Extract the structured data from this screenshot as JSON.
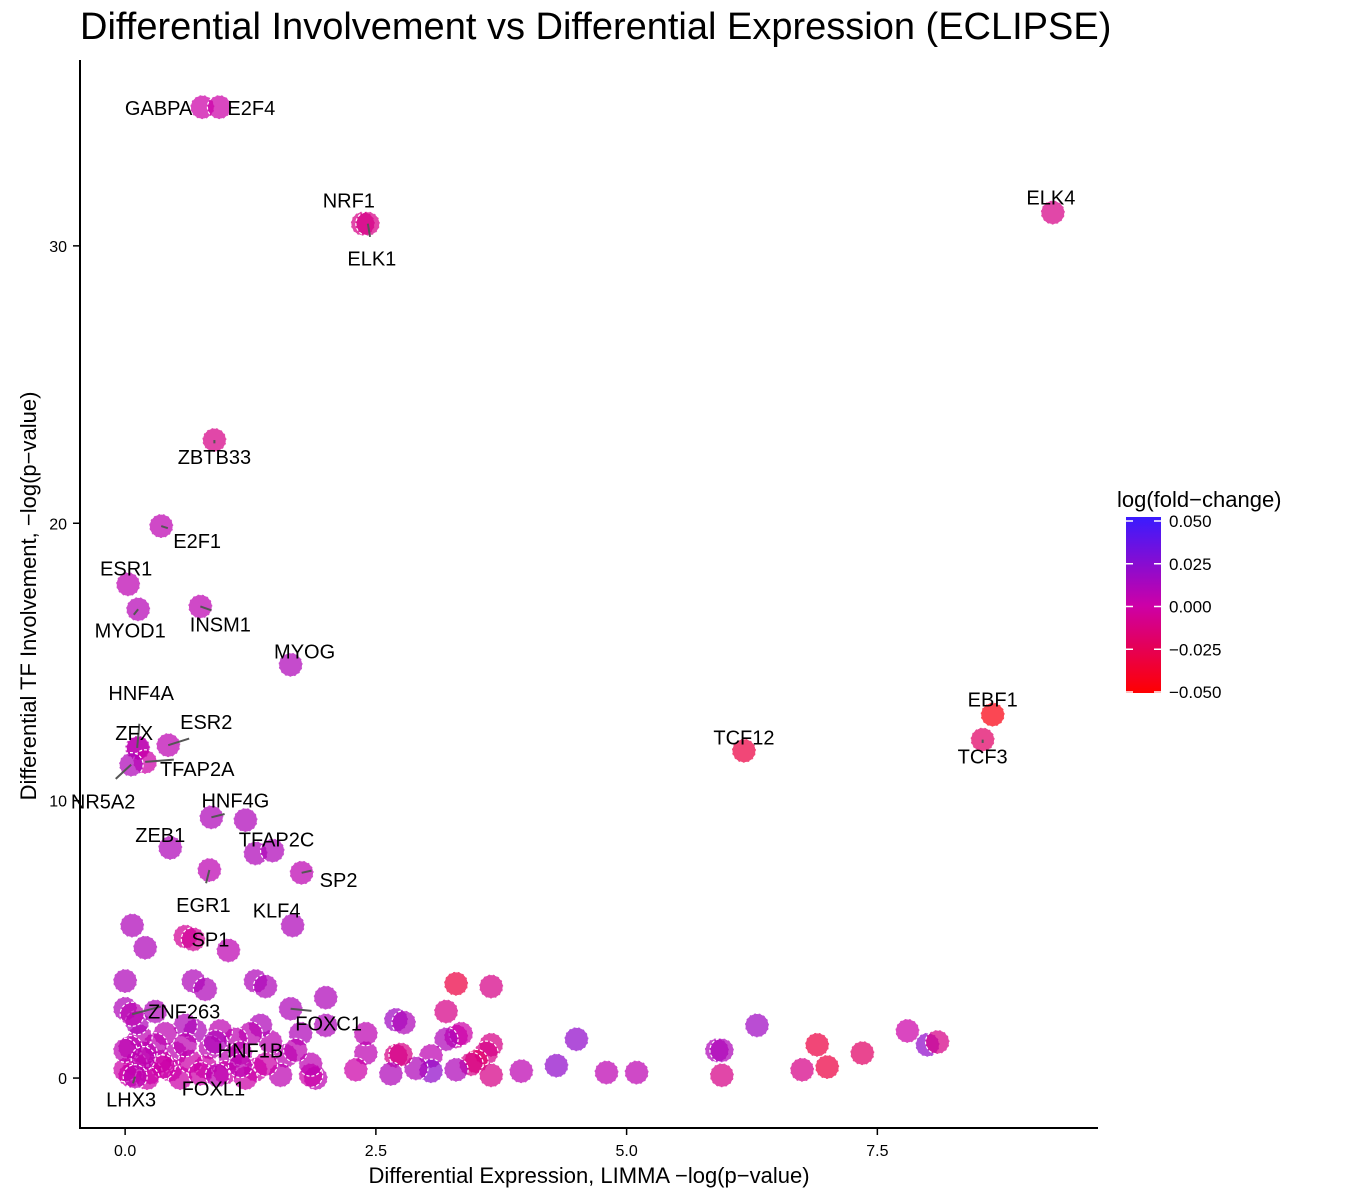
{
  "chart_data": {
    "type": "scatter",
    "title": "Differential Involvement vs Differential Expression (ECLIPSE)",
    "xlabel": "Differential Expression,  LIMMA −log(p−value)",
    "ylabel": "Differential TF Involvement, −log(p−value)",
    "xlim": [
      -0.45,
      9.7
    ],
    "ylim": [
      -1.8,
      36.7
    ],
    "xticks": [
      0,
      2.5,
      5,
      7.5
    ],
    "xtick_labels": [
      "0.0",
      "2.5",
      "5.0",
      "7.5"
    ],
    "yticks": [
      0,
      10,
      20,
      30
    ],
    "ytick_labels": [
      "0",
      "10",
      "20",
      "30"
    ],
    "grid": false,
    "legend": {
      "title": "log(fold−change)",
      "position": "right",
      "min": -0.05,
      "max": 0.05,
      "ticks": [
        0.05,
        0.025,
        0,
        -0.025,
        -0.05
      ],
      "tick_labels": [
        "0.050",
        "0.025",
        "0.000",
        "−0.025",
        "−0.050"
      ],
      "color_low": "#ff0000",
      "color_mid": "#cc00a8",
      "color_high": "#3a1bff"
    },
    "labeled_points": [
      {
        "label": "GABPA",
        "x": 0.77,
        "y": 35.0,
        "fc": 0.0
      },
      {
        "label": "E2F4",
        "x": 0.94,
        "y": 35.0,
        "fc": 0.0
      },
      {
        "label": "NRF1",
        "x": 2.37,
        "y": 30.8,
        "fc": -0.01
      },
      {
        "label": "ELK1",
        "x": 2.42,
        "y": 30.8,
        "fc": -0.01
      },
      {
        "label": "ELK4",
        "x": 9.25,
        "y": 31.2,
        "fc": -0.01
      },
      {
        "label": "ZBTB33",
        "x": 0.89,
        "y": 23.0,
        "fc": -0.01
      },
      {
        "label": "E2F1",
        "x": 0.36,
        "y": 19.9,
        "fc": 0.005
      },
      {
        "label": "ESR1",
        "x": 0.03,
        "y": 17.8,
        "fc": 0.005
      },
      {
        "label": "MYOD1",
        "x": 0.13,
        "y": 16.9,
        "fc": 0.008
      },
      {
        "label": "INSM1",
        "x": 0.75,
        "y": 17.0,
        "fc": 0.005
      },
      {
        "label": "MYOG",
        "x": 1.65,
        "y": 14.9,
        "fc": 0.01
      },
      {
        "label": "HNF4A",
        "x": 0.12,
        "y": 11.9,
        "fc": 0.005
      },
      {
        "label": "ZFX",
        "x": 0.13,
        "y": 11.9,
        "fc": 0.005
      },
      {
        "label": "ESR2",
        "x": 0.43,
        "y": 12.0,
        "fc": 0.005
      },
      {
        "label": "TFAP2A",
        "x": 0.2,
        "y": 11.4,
        "fc": 0.0
      },
      {
        "label": "NR5A2",
        "x": 0.06,
        "y": 11.3,
        "fc": 0.01
      },
      {
        "label": "EBF1",
        "x": 8.65,
        "y": 13.1,
        "fc": -0.045
      },
      {
        "label": "TCF12",
        "x": 6.17,
        "y": 11.8,
        "fc": -0.03
      },
      {
        "label": "TCF3",
        "x": 8.55,
        "y": 12.2,
        "fc": -0.02
      },
      {
        "label": "HNF4G",
        "x": 0.86,
        "y": 9.4,
        "fc": 0.01
      },
      {
        "label": "ZEB1",
        "x": 0.45,
        "y": 8.3,
        "fc": 0.01
      },
      {
        "label": "TFAP2C",
        "x": 1.47,
        "y": 8.2,
        "fc": 0.01
      },
      {
        "label": "EGR1",
        "x": 0.84,
        "y": 7.5,
        "fc": 0.005
      },
      {
        "label": "SP2",
        "x": 1.76,
        "y": 7.4,
        "fc": 0.005
      },
      {
        "label": "KLF4",
        "x": 1.67,
        "y": 5.5,
        "fc": 0.01
      },
      {
        "label": "SP1",
        "x": 1.03,
        "y": 4.6,
        "fc": 0.005
      },
      {
        "label": "ZNF263",
        "x": 0.07,
        "y": 2.3,
        "fc": 0.005
      },
      {
        "label": "FOXC1",
        "x": 1.65,
        "y": 2.5,
        "fc": 0.01
      },
      {
        "label": "HNF1B",
        "x": 1.15,
        "y": 0.45,
        "fc": 0.005
      },
      {
        "label": "FOXL1",
        "x": 0.92,
        "y": 0.1,
        "fc": 0.005
      },
      {
        "label": "LHX3",
        "x": 0.1,
        "y": 0.05,
        "fc": 0.005
      }
    ],
    "other_points": [
      {
        "x": 0.07,
        "y": 5.5,
        "fc": 0.01
      },
      {
        "x": 0.2,
        "y": 4.7,
        "fc": 0.01
      },
      {
        "x": 0.6,
        "y": 5.1,
        "fc": -0.005
      },
      {
        "x": 0.68,
        "y": 5.0,
        "fc": -0.005
      },
      {
        "x": 0.0,
        "y": 3.5,
        "fc": 0.01
      },
      {
        "x": 0.68,
        "y": 3.5,
        "fc": 0.01
      },
      {
        "x": 0.8,
        "y": 3.2,
        "fc": 0.01
      },
      {
        "x": 1.3,
        "y": 3.5,
        "fc": 0.01
      },
      {
        "x": 1.4,
        "y": 3.3,
        "fc": 0.01
      },
      {
        "x": 1.2,
        "y": 9.3,
        "fc": 0.01
      },
      {
        "x": 1.3,
        "y": 8.1,
        "fc": 0.01
      },
      {
        "x": 0.0,
        "y": 2.5,
        "fc": 0.01
      },
      {
        "x": 2.0,
        "y": 2.9,
        "fc": 0.01
      },
      {
        "x": 3.3,
        "y": 3.4,
        "fc": -0.03
      },
      {
        "x": 3.65,
        "y": 3.3,
        "fc": -0.01
      },
      {
        "x": 3.2,
        "y": 2.4,
        "fc": -0.01
      },
      {
        "x": 2.7,
        "y": 2.1,
        "fc": 0.015
      },
      {
        "x": 2.78,
        "y": 2.0,
        "fc": 0.01
      },
      {
        "x": 4.5,
        "y": 1.4,
        "fc": 0.02
      },
      {
        "x": 6.3,
        "y": 1.9,
        "fc": 0.015
      },
      {
        "x": 7.8,
        "y": 1.7,
        "fc": 0.0
      },
      {
        "x": 8.0,
        "y": 1.2,
        "fc": 0.02
      },
      {
        "x": 8.1,
        "y": 1.3,
        "fc": -0.01
      },
      {
        "x": 7.35,
        "y": 0.9,
        "fc": -0.02
      },
      {
        "x": 6.9,
        "y": 1.2,
        "fc": -0.03
      },
      {
        "x": 7.0,
        "y": 0.4,
        "fc": -0.03
      },
      {
        "x": 6.75,
        "y": 0.3,
        "fc": -0.01
      },
      {
        "x": 5.9,
        "y": 1.0,
        "fc": 0.01
      },
      {
        "x": 5.95,
        "y": 1.0,
        "fc": 0.01
      },
      {
        "x": 5.95,
        "y": 0.1,
        "fc": -0.01
      },
      {
        "x": 4.8,
        "y": 0.2,
        "fc": 0.005
      },
      {
        "x": 5.1,
        "y": 0.2,
        "fc": 0.005
      },
      {
        "x": 4.3,
        "y": 0.45,
        "fc": 0.02
      },
      {
        "x": 3.95,
        "y": 0.25,
        "fc": 0.005
      },
      {
        "x": 3.65,
        "y": 1.2,
        "fc": -0.01
      },
      {
        "x": 3.6,
        "y": 0.9,
        "fc": -0.01
      },
      {
        "x": 3.3,
        "y": 1.5,
        "fc": 0.0
      },
      {
        "x": 3.35,
        "y": 1.6,
        "fc": 0.0
      },
      {
        "x": 3.2,
        "y": 1.4,
        "fc": 0.01
      },
      {
        "x": 3.5,
        "y": 0.6,
        "fc": -0.02
      },
      {
        "x": 3.45,
        "y": 0.5,
        "fc": -0.01
      },
      {
        "x": 3.3,
        "y": 0.3,
        "fc": 0.01
      },
      {
        "x": 3.65,
        "y": 0.1,
        "fc": -0.01
      },
      {
        "x": 3.05,
        "y": 0.8,
        "fc": 0.005
      },
      {
        "x": 3.05,
        "y": 0.25,
        "fc": 0.02
      },
      {
        "x": 2.9,
        "y": 0.35,
        "fc": 0.01
      },
      {
        "x": 2.7,
        "y": 0.8,
        "fc": -0.01
      },
      {
        "x": 2.75,
        "y": 0.85,
        "fc": -0.01
      },
      {
        "x": 2.4,
        "y": 0.9,
        "fc": 0.005
      },
      {
        "x": 2.65,
        "y": 0.15,
        "fc": 0.01
      },
      {
        "x": 2.3,
        "y": 0.3,
        "fc": 0.0
      },
      {
        "x": 2.4,
        "y": 1.6,
        "fc": 0.005
      },
      {
        "x": 2.0,
        "y": 1.9,
        "fc": 0.01
      },
      {
        "x": 1.9,
        "y": 0.0,
        "fc": 0.005
      },
      {
        "x": 1.85,
        "y": 0.1,
        "fc": 0.0
      },
      {
        "x": 1.85,
        "y": 0.5,
        "fc": 0.005
      },
      {
        "x": 1.75,
        "y": 1.6,
        "fc": 0.01
      },
      {
        "x": 1.6,
        "y": 0.8,
        "fc": 0.005
      },
      {
        "x": 1.55,
        "y": 0.1,
        "fc": 0.005
      },
      {
        "x": 1.45,
        "y": 1.3,
        "fc": 0.005
      },
      {
        "x": 1.35,
        "y": 1.9,
        "fc": 0.01
      },
      {
        "x": 1.3,
        "y": 0.3,
        "fc": 0.0
      },
      {
        "x": 1.25,
        "y": 1.6,
        "fc": 0.005
      },
      {
        "x": 1.1,
        "y": 1.4,
        "fc": 0.005
      },
      {
        "x": 1.05,
        "y": 0.7,
        "fc": 0.005
      },
      {
        "x": 0.95,
        "y": 1.7,
        "fc": 0.005
      },
      {
        "x": 0.85,
        "y": 1.1,
        "fc": 0.005
      },
      {
        "x": 0.8,
        "y": 0.4,
        "fc": 0.0
      },
      {
        "x": 0.7,
        "y": 1.7,
        "fc": 0.01
      },
      {
        "x": 0.6,
        "y": 1.9,
        "fc": 0.01
      },
      {
        "x": 0.5,
        "y": 0.9,
        "fc": 0.005
      },
      {
        "x": 0.45,
        "y": 0.3,
        "fc": 0.0
      },
      {
        "x": 0.4,
        "y": 1.6,
        "fc": 0.005
      },
      {
        "x": 0.35,
        "y": 0.6,
        "fc": 0.0
      },
      {
        "x": 0.3,
        "y": 1.2,
        "fc": 0.005
      },
      {
        "x": 0.25,
        "y": 0.2,
        "fc": 0.0
      },
      {
        "x": 0.2,
        "y": 0.9,
        "fc": 0.005
      },
      {
        "x": 0.15,
        "y": 1.5,
        "fc": 0.005
      },
      {
        "x": 0.1,
        "y": 0.5,
        "fc": 0.0
      },
      {
        "x": 0.05,
        "y": 1.1,
        "fc": 0.005
      },
      {
        "x": 0.05,
        "y": 0.1,
        "fc": 0.0
      },
      {
        "x": 0.0,
        "y": 0.3,
        "fc": 0.0
      },
      {
        "x": 0.0,
        "y": 1.0,
        "fc": 0.005
      },
      {
        "x": 0.12,
        "y": 2.0,
        "fc": 0.01
      },
      {
        "x": 0.3,
        "y": 2.4,
        "fc": 0.01
      },
      {
        "x": 0.55,
        "y": 0.0,
        "fc": 0.0
      },
      {
        "x": 0.65,
        "y": 0.6,
        "fc": 0.0
      },
      {
        "x": 0.75,
        "y": 0.15,
        "fc": 0.0
      },
      {
        "x": 1.0,
        "y": 0.2,
        "fc": 0.0
      },
      {
        "x": 1.15,
        "y": 0.9,
        "fc": 0.005
      },
      {
        "x": 1.4,
        "y": 0.5,
        "fc": 0.0
      },
      {
        "x": 1.7,
        "y": 1.0,
        "fc": 0.005
      },
      {
        "x": 0.9,
        "y": 1.3,
        "fc": 0.01
      },
      {
        "x": 0.38,
        "y": 0.4,
        "fc": 0.0
      },
      {
        "x": 0.22,
        "y": 0.0,
        "fc": 0.0
      },
      {
        "x": 0.6,
        "y": 1.2,
        "fc": 0.005
      },
      {
        "x": 1.2,
        "y": 0.0,
        "fc": 0.0
      },
      {
        "x": 0.18,
        "y": 0.7,
        "fc": 0.005
      }
    ]
  }
}
